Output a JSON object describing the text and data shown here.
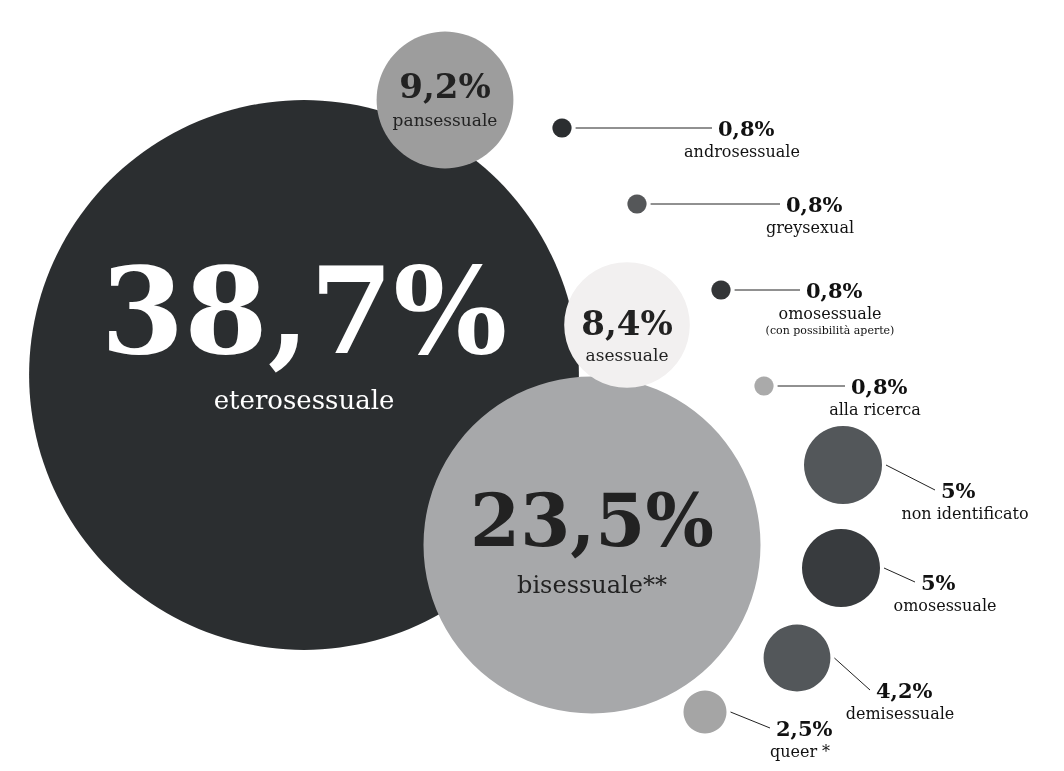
{
  "chart_data": {
    "type": "other",
    "categories": [
      "eterosessuale",
      "pansessuale",
      "asessuale",
      "bisessuale**",
      "androsessuale",
      "greysexual",
      "omosessuale\n(con possibilità aperte)",
      "alla ricerca",
      "non identificato",
      "omosessuale",
      "demisessuale",
      "queer *"
    ],
    "values": [
      38.7,
      9.2,
      8.4,
      23.5,
      0.8,
      0.8,
      0.8,
      0.8,
      5,
      5,
      4.2,
      2.5
    ],
    "value_labels": [
      "38,7%",
      "9,2%",
      "8,4%",
      "23,5%",
      "0,8%",
      "0,8%",
      "0,8%",
      "0,8%",
      "5%",
      "5%",
      "4,2%",
      "2,5%"
    ],
    "colors": [
      "#2b2e30",
      "#9d9d9d",
      "#f2f0f0",
      "#a7a8aa",
      "#2b2e30",
      "#555759",
      "#333537",
      "#aaaaaa",
      "#53575a",
      "#383b3e",
      "#53575a",
      "#a5a5a5"
    ],
    "data_labels": true
  }
}
